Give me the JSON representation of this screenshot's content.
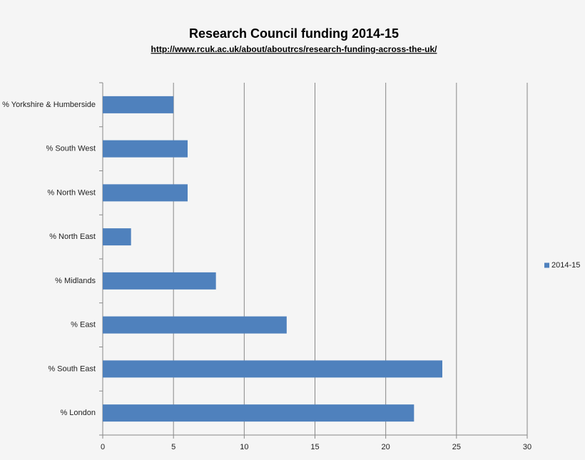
{
  "chart_data": {
    "type": "bar",
    "orientation": "horizontal",
    "title": "Research Council funding 2014-15",
    "subtitle": "http://www.rcuk.ac.uk/about/aboutrcs/research-funding-across-the-uk/",
    "categories": [
      "% Yorkshire & Humberside",
      "% South West",
      "% North West",
      "% North East",
      "% Midlands",
      "% East",
      "% South East",
      "% London"
    ],
    "series": [
      {
        "name": "2014-15",
        "color": "#4f81bd",
        "values": [
          5,
          6,
          6,
          2,
          8,
          13,
          24,
          22
        ]
      }
    ],
    "xlim": [
      0,
      30
    ],
    "xticks": [
      0,
      5,
      10,
      15,
      20,
      25,
      30
    ],
    "grid": true,
    "legend": "right"
  }
}
